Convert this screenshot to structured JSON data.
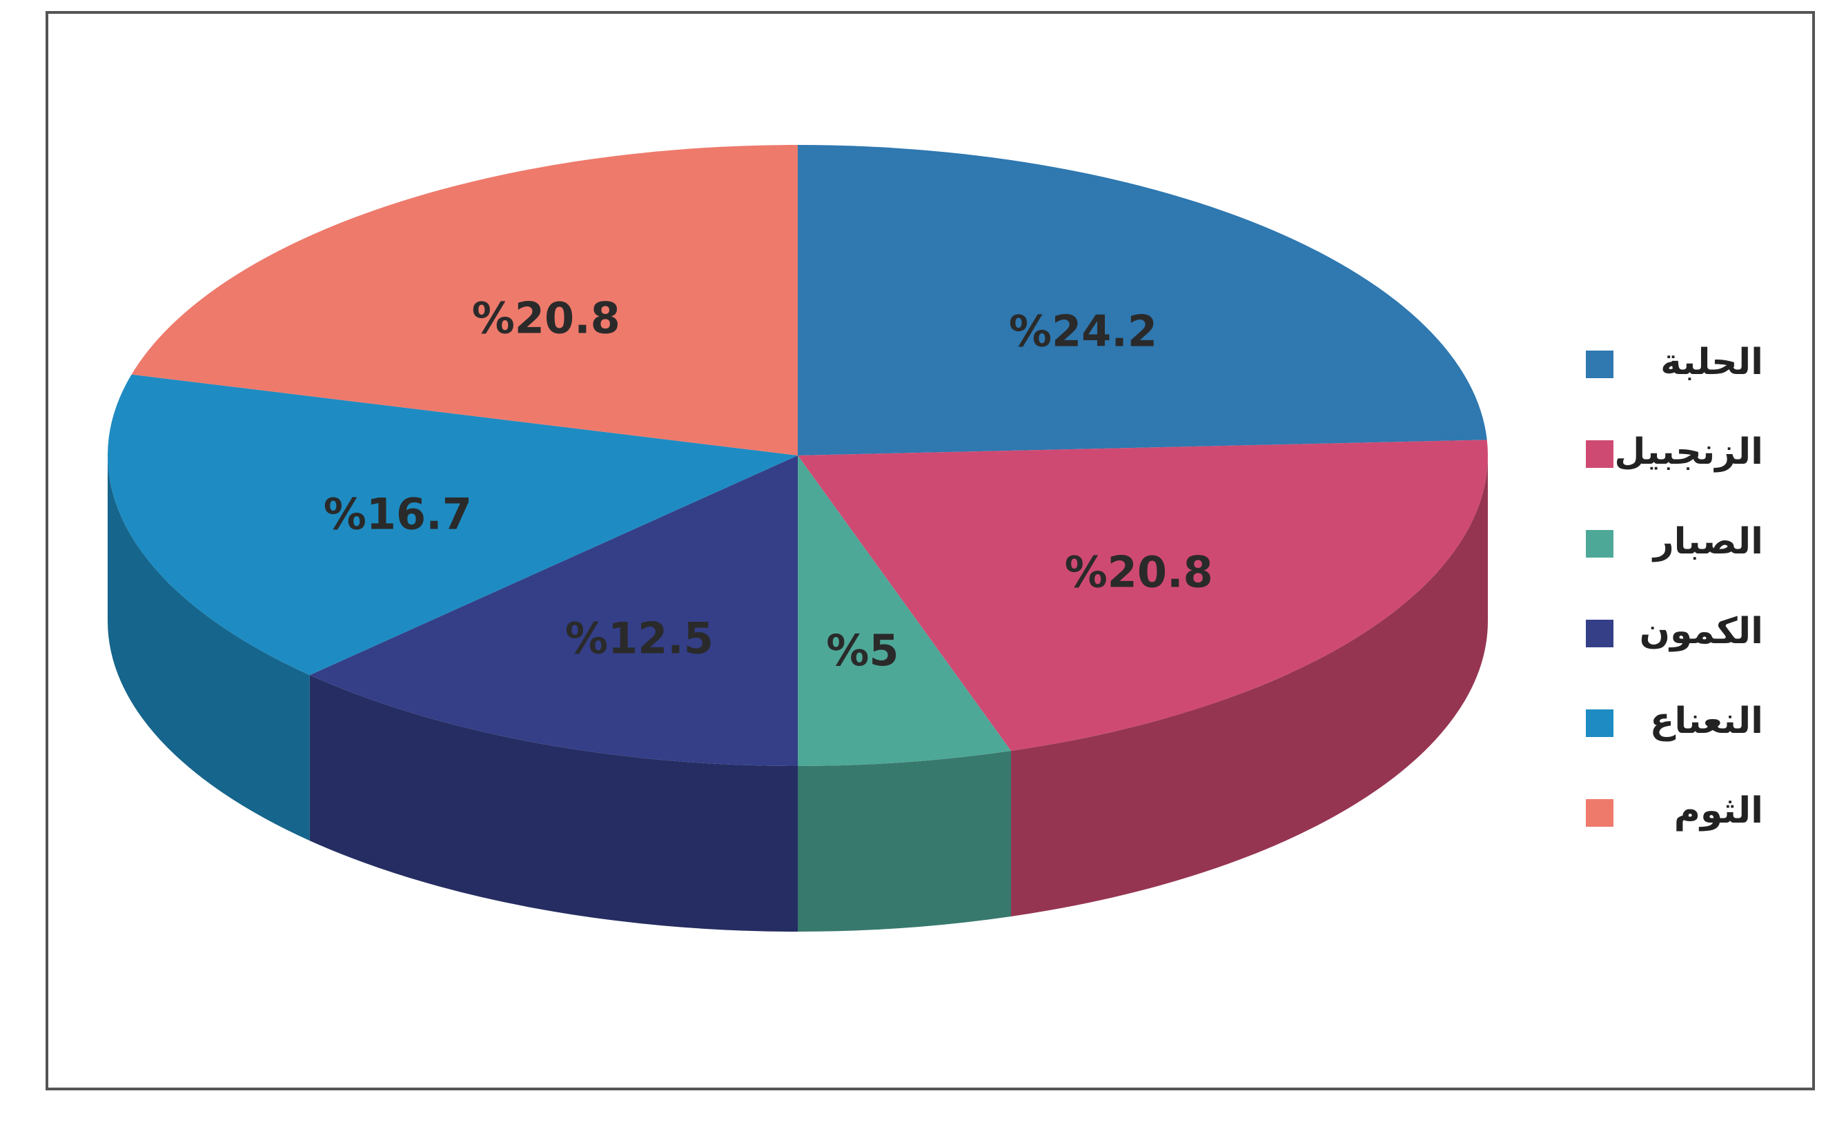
{
  "chart_data": {
    "type": "pie",
    "categories": [
      "الحلبة",
      "الزنجبيل",
      "الصبار",
      "الكمون",
      "النعناع",
      "الثوم"
    ],
    "values": [
      24.2,
      20.8,
      5,
      12.5,
      16.7,
      20.8
    ],
    "value_labels": [
      "%24.2",
      "%20.8",
      "%5",
      "%12.5",
      "%16.7",
      "%20.8"
    ],
    "colors": [
      "#2f78b0",
      "#cf4a72",
      "#4ea898",
      "#343f88",
      "#1e8cc2",
      "#ee7a6c"
    ],
    "legend": "right"
  }
}
